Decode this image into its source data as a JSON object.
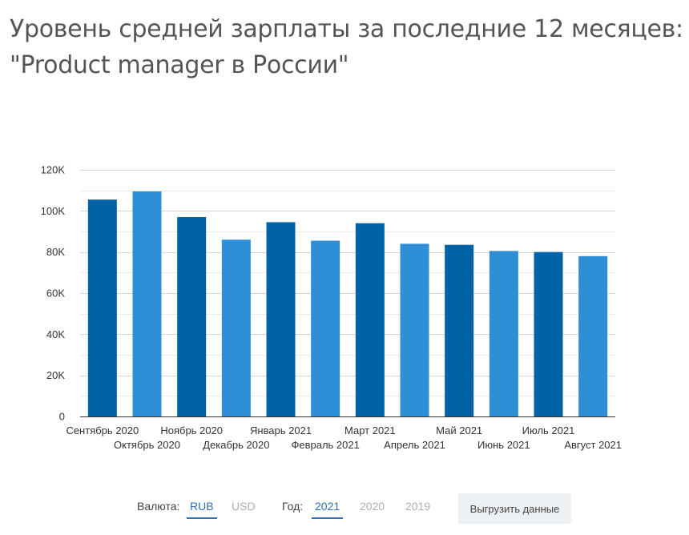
{
  "title_lines": [
    "Уровень средней зарплаты за последние 12 месяцев:",
    "\"Product manager в России\""
  ],
  "chart_data": {
    "type": "bar",
    "categories": [
      "Сентябрь 2020",
      "Октябрь 2020",
      "Ноябрь 2020",
      "Декабрь 2020",
      "Январь 2021",
      "Февраль 2021",
      "Март 2021",
      "Апрель 2021",
      "Май 2021",
      "Июнь 2021",
      "Июль 2021",
      "Август 2021"
    ],
    "values": [
      105500,
      109500,
      97000,
      86000,
      94500,
      85500,
      94000,
      84000,
      83500,
      80500,
      80000,
      78000
    ],
    "ylim": [
      0,
      120000
    ],
    "y_ticks": [
      "0",
      "20K",
      "40K",
      "60K",
      "80K",
      "100K",
      "120K"
    ],
    "colors": [
      "#0062a6",
      "#2f8fd6"
    ],
    "grid": true
  },
  "controls": {
    "currency_label": "Валюта:",
    "currency_options": [
      "RUB",
      "USD"
    ],
    "currency_selected": "RUB",
    "year_label": "Год:",
    "year_options": [
      "2021",
      "2020",
      "2019"
    ],
    "year_selected": "2021",
    "export_label": "Выгрузить данные"
  }
}
